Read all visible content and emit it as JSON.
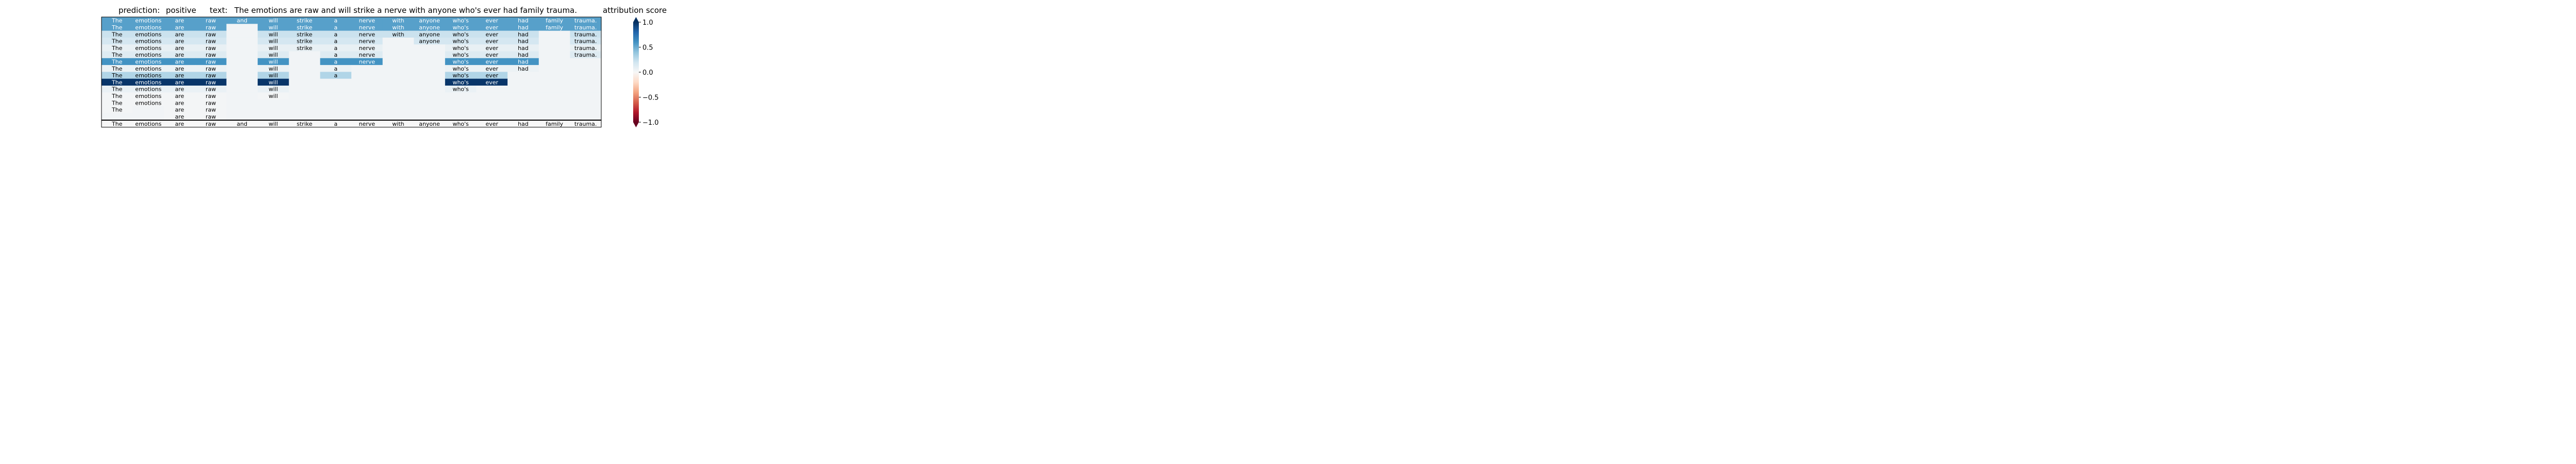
{
  "header": {
    "prediction_label": "prediction:",
    "prediction_value": "positive",
    "text_label": "text:",
    "text_value": "The emotions are raw and will strike a nerve with anyone who's ever had family trauma.",
    "colorbar_title": "attribution score"
  },
  "chart_data": {
    "type": "heatmap",
    "tokens": [
      "The",
      "emotions",
      "are",
      "raw",
      "and",
      "will",
      "strike",
      "a",
      "nerve",
      "with",
      "anyone",
      "who's",
      "ever",
      "had",
      "family",
      "trauma."
    ],
    "colorbar": {
      "range": [
        -1.0,
        1.0
      ],
      "ticks": [
        1.0,
        0.5,
        0.0,
        -0.5,
        -1.0
      ],
      "tick_labels": [
        "1.0",
        "0.5",
        "0.0",
        "−0.5",
        "−1.0"
      ],
      "colormap": "RdBu"
    },
    "rows": [
      {
        "present": [
          1,
          1,
          1,
          1,
          1,
          1,
          1,
          1,
          1,
          1,
          1,
          1,
          1,
          1,
          1,
          1
        ],
        "scores": [
          0.55,
          0.55,
          0.55,
          0.55,
          0.55,
          0.55,
          0.55,
          0.55,
          0.55,
          0.55,
          0.55,
          0.55,
          0.55,
          0.55,
          0.55,
          0.55
        ]
      },
      {
        "present": [
          1,
          1,
          1,
          1,
          0,
          1,
          1,
          1,
          1,
          1,
          1,
          1,
          1,
          1,
          1,
          1
        ],
        "scores": [
          0.55,
          0.55,
          0.55,
          0.55,
          0,
          0.55,
          0.55,
          0.55,
          0.55,
          0.55,
          0.55,
          0.55,
          0.55,
          0.55,
          0.55,
          0.55
        ]
      },
      {
        "present": [
          1,
          1,
          1,
          1,
          0,
          1,
          1,
          1,
          1,
          1,
          1,
          1,
          1,
          1,
          0,
          1
        ],
        "scores": [
          0.22,
          0.22,
          0.22,
          0.22,
          0,
          0.22,
          0.22,
          0.22,
          0.22,
          0.22,
          0.22,
          0.22,
          0.22,
          0.22,
          0,
          0.22
        ]
      },
      {
        "present": [
          1,
          1,
          1,
          1,
          0,
          1,
          1,
          1,
          1,
          0,
          1,
          1,
          1,
          1,
          0,
          1
        ],
        "scores": [
          0.18,
          0.18,
          0.18,
          0.18,
          0,
          0.18,
          0.18,
          0.18,
          0.18,
          0,
          0.18,
          0.18,
          0.18,
          0.18,
          0,
          0.18
        ]
      },
      {
        "present": [
          1,
          1,
          1,
          1,
          0,
          1,
          1,
          1,
          1,
          0,
          0,
          1,
          1,
          1,
          0,
          1
        ],
        "scores": [
          0.08,
          0.08,
          0.08,
          0.08,
          0,
          0.08,
          0.08,
          0.08,
          0.08,
          0,
          0,
          0.08,
          0.08,
          0.08,
          0,
          0.08
        ]
      },
      {
        "present": [
          1,
          1,
          1,
          1,
          0,
          1,
          0,
          1,
          1,
          0,
          0,
          1,
          1,
          1,
          0,
          1
        ],
        "scores": [
          0.13,
          0.13,
          0.13,
          0.13,
          0,
          0.13,
          0,
          0.13,
          0.13,
          0,
          0,
          0.13,
          0.13,
          0.13,
          0,
          0.13
        ]
      },
      {
        "present": [
          1,
          1,
          1,
          1,
          0,
          1,
          0,
          1,
          1,
          0,
          0,
          1,
          1,
          1,
          0,
          0
        ],
        "scores": [
          0.6,
          0.6,
          0.6,
          0.6,
          0,
          0.6,
          0,
          0.6,
          0.6,
          0,
          0,
          0.6,
          0.6,
          0.6,
          0,
          0
        ]
      },
      {
        "present": [
          1,
          1,
          1,
          1,
          0,
          1,
          0,
          1,
          0,
          0,
          0,
          1,
          1,
          1,
          0,
          0
        ],
        "scores": [
          0.06,
          0.06,
          0.06,
          0.06,
          0,
          0.06,
          0,
          0.06,
          0,
          0,
          0,
          0.06,
          0.06,
          0.06,
          0,
          0
        ]
      },
      {
        "present": [
          1,
          1,
          1,
          1,
          0,
          1,
          0,
          1,
          0,
          0,
          0,
          1,
          1,
          0,
          0,
          0
        ],
        "scores": [
          0.3,
          0.3,
          0.3,
          0.3,
          0,
          0.3,
          0,
          0.3,
          0,
          0,
          0,
          0.3,
          0.3,
          0,
          0,
          0
        ]
      },
      {
        "present": [
          1,
          1,
          1,
          1,
          0,
          1,
          0,
          0,
          0,
          0,
          0,
          1,
          1,
          0,
          0,
          0
        ],
        "scores": [
          0.98,
          0.98,
          0.98,
          0.98,
          0,
          0.98,
          0,
          0,
          0,
          0,
          0,
          0.98,
          0.98,
          0,
          0,
          0
        ]
      },
      {
        "present": [
          1,
          1,
          1,
          1,
          0,
          1,
          0,
          0,
          0,
          0,
          0,
          1,
          0,
          0,
          0,
          0
        ],
        "scores": [
          0.07,
          0.07,
          0.07,
          0.07,
          0,
          0.07,
          0,
          0,
          0,
          0,
          0,
          0.07,
          0,
          0,
          0,
          0
        ]
      },
      {
        "present": [
          1,
          1,
          1,
          1,
          0,
          1,
          0,
          0,
          0,
          0,
          0,
          0,
          0,
          0,
          0,
          0
        ],
        "scores": [
          0.02,
          0.02,
          0.02,
          0.02,
          0,
          0.02,
          0,
          0,
          0,
          0,
          0,
          0,
          0,
          0,
          0,
          0
        ]
      },
      {
        "present": [
          1,
          1,
          1,
          1,
          0,
          0,
          0,
          0,
          0,
          0,
          0,
          0,
          0,
          0,
          0,
          0
        ],
        "scores": [
          0.02,
          0.02,
          0.02,
          0.02,
          0,
          0,
          0,
          0,
          0,
          0,
          0,
          0,
          0,
          0,
          0,
          0
        ]
      },
      {
        "present": [
          1,
          0,
          1,
          1,
          0,
          0,
          0,
          0,
          0,
          0,
          0,
          0,
          0,
          0,
          0,
          0
        ],
        "scores": [
          0.02,
          0,
          0.02,
          0.02,
          0,
          0,
          0,
          0,
          0,
          0,
          0,
          0,
          0,
          0,
          0,
          0
        ]
      },
      {
        "present": [
          0,
          0,
          1,
          1,
          0,
          0,
          0,
          0,
          0,
          0,
          0,
          0,
          0,
          0,
          0,
          0
        ],
        "scores": [
          0,
          0,
          0.02,
          0.02,
          0,
          0,
          0,
          0,
          0,
          0,
          0,
          0,
          0,
          0,
          0,
          0
        ]
      }
    ],
    "input_row": {
      "present": [
        1,
        1,
        1,
        1,
        1,
        1,
        1,
        1,
        1,
        1,
        1,
        1,
        1,
        1,
        1,
        1
      ],
      "scores": [
        0,
        0,
        0,
        0,
        0,
        0,
        0,
        0,
        0,
        0,
        0,
        0,
        0,
        0,
        0,
        0
      ]
    }
  }
}
